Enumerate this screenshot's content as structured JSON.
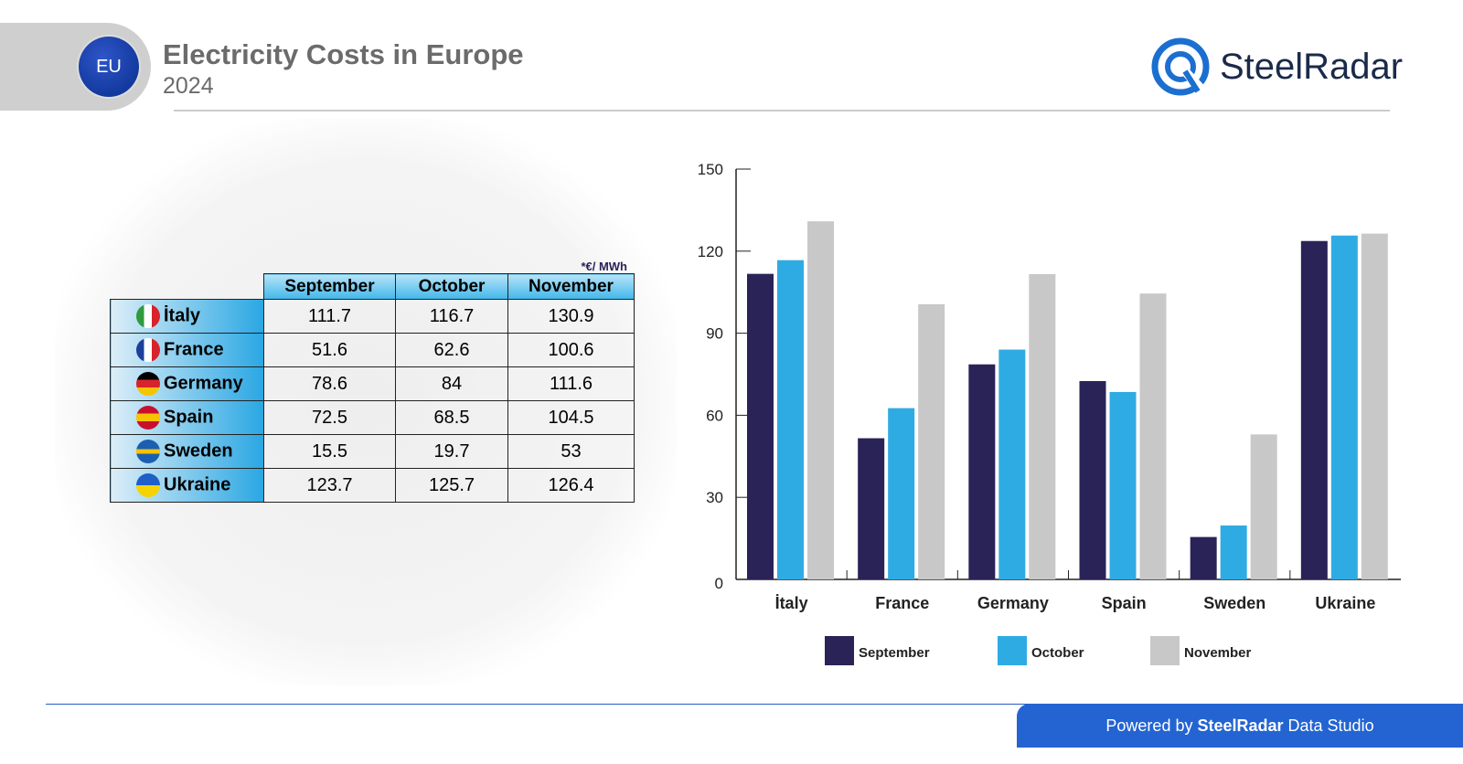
{
  "header": {
    "title": "Electricity Costs in Europe",
    "year": "2024",
    "badge": "EU",
    "brand": "SteelRadar"
  },
  "unit": "*€/ MWh",
  "table": {
    "columns": [
      "September",
      "October",
      "November"
    ],
    "rows": [
      {
        "country": "İtaly",
        "values": [
          "111.7",
          "116.7",
          "130.9"
        ]
      },
      {
        "country": "France",
        "values": [
          "51.6",
          "62.6",
          "100.6"
        ]
      },
      {
        "country": "Germany",
        "values": [
          "78.6",
          "84",
          "111.6"
        ]
      },
      {
        "country": "Spain",
        "values": [
          "72.5",
          "68.5",
          "104.5"
        ]
      },
      {
        "country": "Sweden",
        "values": [
          "15.5",
          "19.7",
          "53"
        ]
      },
      {
        "country": "Ukraine",
        "values": [
          "123.7",
          "125.7",
          "126.4"
        ]
      }
    ]
  },
  "footer": {
    "prefix": "Powered by ",
    "brand": "SteelRadar",
    "suffix": " Data Studio"
  },
  "chart_data": {
    "type": "bar",
    "categories": [
      "İtaly",
      "France",
      "Germany",
      "Spain",
      "Sweden",
      "Ukraine"
    ],
    "series": [
      {
        "name": "September",
        "color": "#2a2358",
        "values": [
          111.7,
          51.6,
          78.6,
          72.5,
          15.5,
          123.7
        ]
      },
      {
        "name": "October",
        "color": "#2fabe3",
        "values": [
          116.7,
          62.6,
          84,
          68.5,
          19.7,
          125.7
        ]
      },
      {
        "name": "November",
        "color": "#c8c8c8",
        "values": [
          130.9,
          100.6,
          111.6,
          104.5,
          53,
          126.4
        ]
      }
    ],
    "ylim": [
      0,
      150
    ],
    "yticks": [
      0,
      30,
      60,
      90,
      120,
      150
    ],
    "legend": "bottom"
  }
}
